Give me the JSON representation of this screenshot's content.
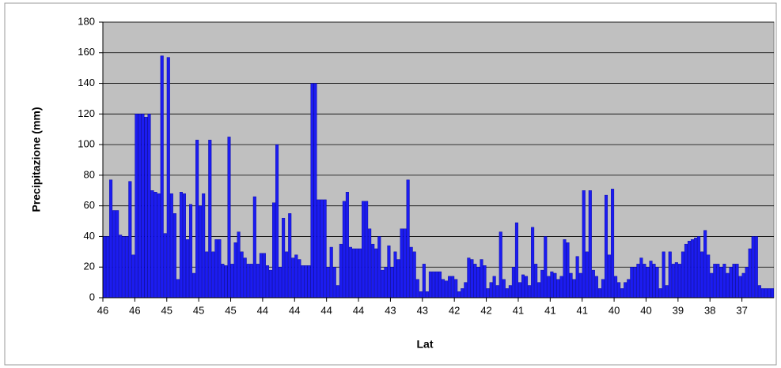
{
  "chart_data": {
    "type": "bar",
    "y_label": "Precipitazione (mm)",
    "x_label": "Lat",
    "color": "#1c1cf0",
    "grid": true,
    "ylim": [
      0,
      180
    ],
    "yticks": [
      0,
      20,
      40,
      60,
      80,
      100,
      120,
      140,
      160,
      180
    ],
    "categories": [
      "46",
      null,
      null,
      null,
      null,
      null,
      null,
      null,
      null,
      null,
      "46",
      null,
      null,
      null,
      null,
      null,
      null,
      null,
      null,
      null,
      "45",
      null,
      null,
      null,
      null,
      null,
      null,
      null,
      null,
      null,
      "45",
      null,
      null,
      null,
      null,
      null,
      null,
      null,
      null,
      null,
      "45",
      null,
      null,
      null,
      null,
      null,
      null,
      null,
      null,
      null,
      "44",
      null,
      null,
      null,
      null,
      null,
      null,
      null,
      null,
      null,
      "44",
      null,
      null,
      null,
      null,
      null,
      null,
      null,
      null,
      null,
      "44",
      null,
      null,
      null,
      null,
      null,
      null,
      null,
      null,
      null,
      "44",
      null,
      null,
      null,
      null,
      null,
      null,
      null,
      null,
      null,
      "43",
      null,
      null,
      null,
      null,
      null,
      null,
      null,
      null,
      null,
      "43",
      null,
      null,
      null,
      null,
      null,
      null,
      null,
      null,
      null,
      "42",
      null,
      null,
      null,
      null,
      null,
      null,
      null,
      null,
      null,
      "42",
      null,
      null,
      null,
      null,
      null,
      null,
      null,
      null,
      null,
      "41",
      null,
      null,
      null,
      null,
      null,
      null,
      null,
      null,
      null,
      "41",
      null,
      null,
      null,
      null,
      null,
      null,
      null,
      null,
      null,
      "41",
      null,
      null,
      null,
      null,
      null,
      null,
      null,
      null,
      null,
      "40",
      null,
      null,
      null,
      null,
      null,
      null,
      null,
      null,
      null,
      "40",
      null,
      null,
      null,
      null,
      null,
      null,
      null,
      null,
      null,
      "39",
      null,
      null,
      null,
      null,
      null,
      null,
      null,
      null,
      null,
      "38",
      null,
      null,
      null,
      null,
      null,
      null,
      null,
      null,
      null,
      "37",
      null,
      null,
      null,
      null,
      null,
      null,
      null,
      null,
      null
    ],
    "values": [
      40,
      40,
      77,
      57,
      57,
      41,
      40,
      40,
      76,
      28,
      120,
      120,
      120,
      118,
      120,
      70,
      69,
      68,
      158,
      42,
      157,
      68,
      55,
      12,
      69,
      68,
      38,
      61,
      16,
      103,
      60,
      68,
      30,
      103,
      30,
      38,
      38,
      22,
      21,
      105,
      22,
      36,
      43,
      30,
      26,
      22,
      22,
      66,
      22,
      29,
      29,
      21,
      18,
      62,
      100,
      20,
      52,
      30,
      55,
      26,
      28,
      25,
      21,
      21,
      21,
      140,
      140,
      64,
      64,
      64,
      20,
      33,
      20,
      8,
      35,
      63,
      69,
      33,
      32,
      32,
      32,
      63,
      63,
      45,
      35,
      32,
      40,
      18,
      20,
      34,
      20,
      30,
      25,
      45,
      45,
      77,
      33,
      30,
      12,
      4,
      22,
      4,
      17,
      17,
      17,
      17,
      12,
      11,
      14,
      14,
      12,
      4,
      6,
      10,
      26,
      25,
      22,
      20,
      25,
      21,
      6,
      10,
      14,
      8,
      43,
      12,
      6,
      8,
      20,
      49,
      10,
      15,
      14,
      8,
      46,
      22,
      10,
      18,
      40,
      14,
      17,
      16,
      12,
      14,
      38,
      36,
      16,
      12,
      27,
      16,
      70,
      30,
      70,
      18,
      14,
      6,
      12,
      67,
      28,
      71,
      14,
      10,
      6,
      10,
      12,
      20,
      20,
      22,
      26,
      22,
      20,
      24,
      22,
      20,
      6,
      30,
      8,
      30,
      22,
      23,
      22,
      30,
      35,
      37,
      38,
      39,
      40,
      30,
      44,
      28,
      16,
      22,
      22,
      20,
      22,
      16,
      20,
      22,
      22,
      14,
      16,
      20,
      32,
      40,
      40,
      8,
      6,
      6,
      6,
      6
    ]
  }
}
